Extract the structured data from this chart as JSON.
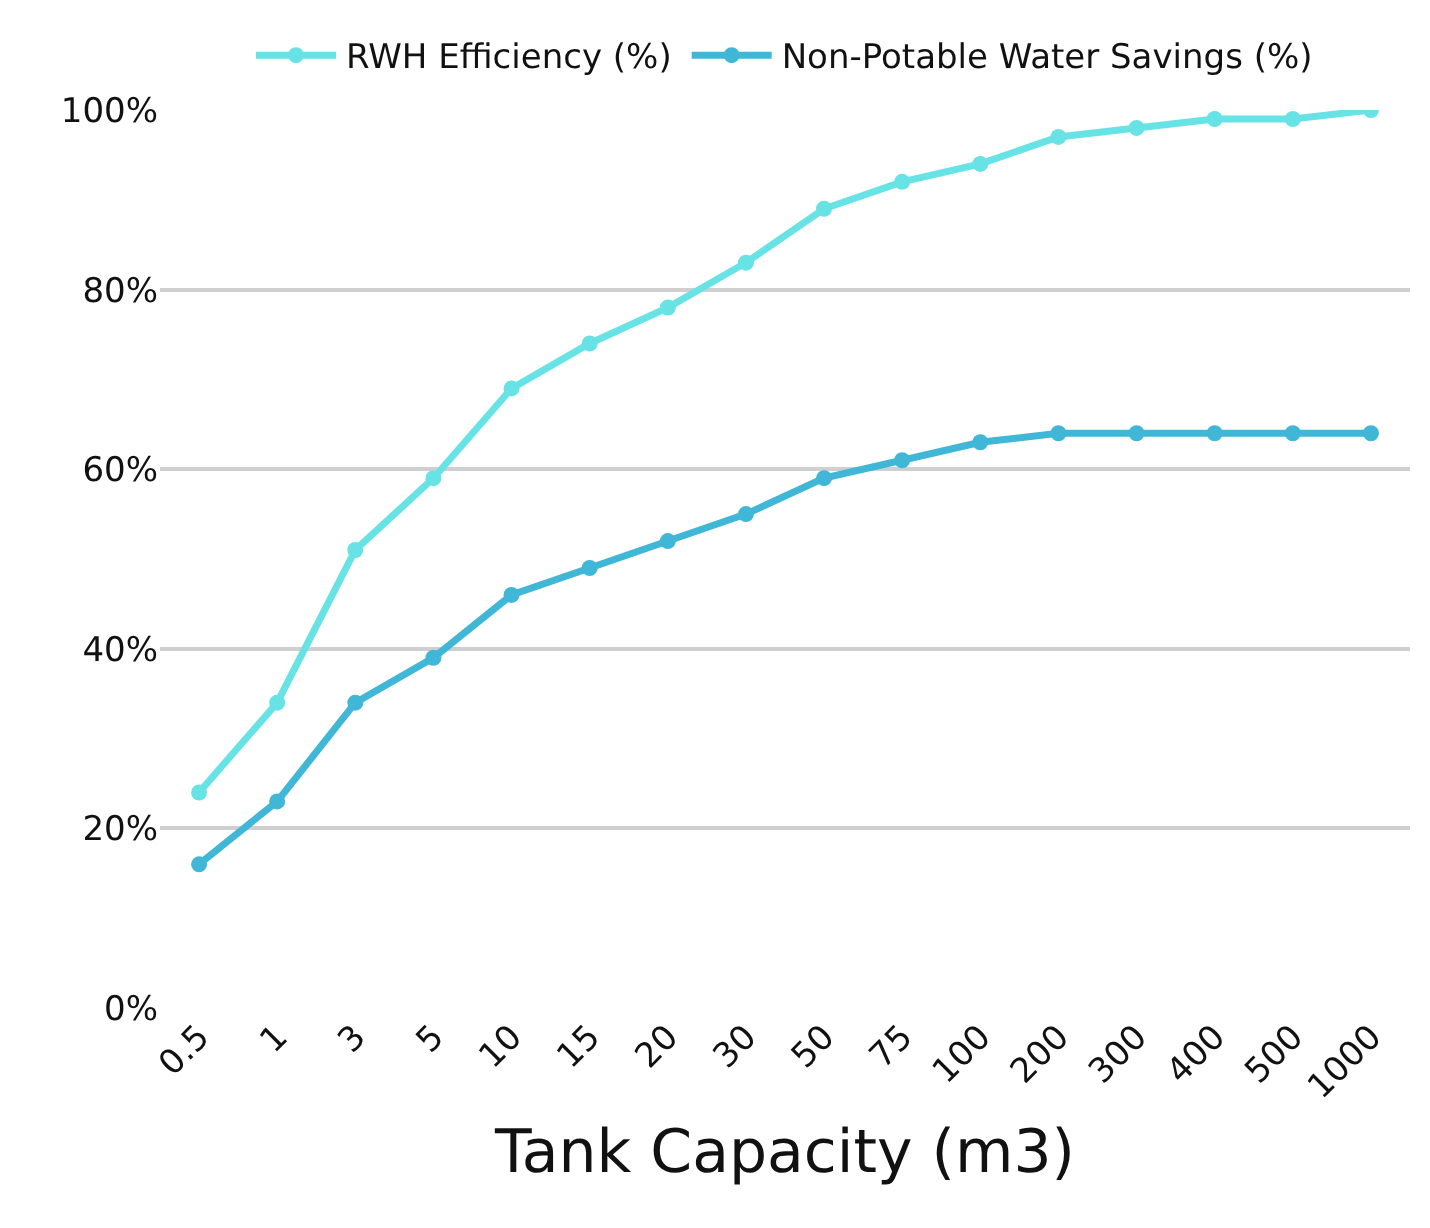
{
  "chart_data": {
    "type": "line",
    "xlabel": "Tank Capacity (m3)",
    "categories": [
      "0.5",
      "1",
      "3",
      "5",
      "10",
      "15",
      "20",
      "30",
      "50",
      "75",
      "100",
      "200",
      "300",
      "400",
      "500",
      "1000"
    ],
    "series": [
      {
        "name": "RWH Efficiency (%)",
        "color": "#67e3e6",
        "values": [
          24,
          34,
          51,
          59,
          69,
          74,
          78,
          83,
          89,
          92,
          94,
          97,
          98,
          99,
          99,
          100
        ]
      },
      {
        "name": "Non-Potable Water Savings (%)",
        "color": "#40b7d6",
        "values": [
          16,
          23,
          34,
          39,
          46,
          49,
          52,
          55,
          59,
          61,
          63,
          64,
          64,
          64,
          64,
          64
        ]
      }
    ],
    "ylim": [
      0,
      100
    ],
    "yticks": [
      {
        "value": 0,
        "label": "0%"
      },
      {
        "value": 20,
        "label": "20%"
      },
      {
        "value": 40,
        "label": "40%"
      },
      {
        "value": 60,
        "label": "60%"
      },
      {
        "value": 80,
        "label": "80%"
      },
      {
        "value": 100,
        "label": "100%"
      }
    ],
    "grid": "y",
    "legend": "top",
    "marker": "circle",
    "line_style": "solid"
  }
}
